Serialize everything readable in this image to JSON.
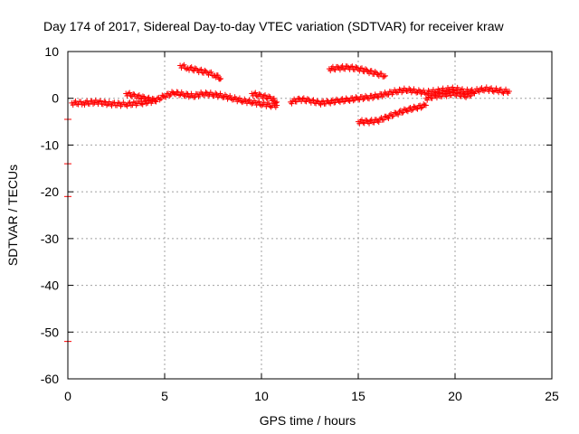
{
  "chart_data": {
    "type": "scatter",
    "title": "Day 174 of 2017, Sidereal Day-to-day VTEC variation (SDTVAR) for receiver kraw",
    "xlabel": "GPS time / hours",
    "ylabel": "SDTVAR / TECUs",
    "xlim": [
      0,
      25
    ],
    "ylim": [
      -60,
      10
    ],
    "xticks": [
      0,
      5,
      10,
      15,
      20,
      25
    ],
    "yticks": [
      10,
      0,
      -10,
      -20,
      -30,
      -40,
      -50,
      -60
    ],
    "grid": true,
    "marker": "plus",
    "color": "#ff0000",
    "series": [
      {
        "name": "main-trace-1",
        "x": [
          0.2,
          0.8,
          1.5,
          2.2,
          3.0,
          3.8,
          4.5,
          5.0,
          5.5,
          6.0,
          6.5,
          7.0,
          7.5,
          8.0,
          8.5,
          9.0,
          9.5,
          10.0,
          10.5,
          10.8
        ],
        "y": [
          -1.0,
          -1.0,
          -0.8,
          -1.2,
          -1.3,
          -1.0,
          -0.5,
          0.5,
          1.2,
          0.8,
          0.5,
          1.0,
          0.8,
          0.5,
          0.0,
          -0.5,
          -0.8,
          -1.2,
          -1.5,
          -1.5
        ]
      },
      {
        "name": "main-trace-2",
        "x": [
          3.0,
          3.5,
          4.0,
          4.5
        ],
        "y": [
          1.0,
          0.5,
          0.0,
          -0.5
        ]
      },
      {
        "name": "main-trace-3",
        "x": [
          9.5,
          10.0,
          10.5,
          10.8
        ],
        "y": [
          1.0,
          0.5,
          0.0,
          -0.8
        ]
      },
      {
        "name": "main-trace-4",
        "x": [
          11.5,
          12.0,
          12.5,
          13.0,
          13.5,
          14.0,
          14.5,
          15.0,
          15.5,
          16.0,
          16.5,
          17.0,
          17.5,
          18.0,
          18.5,
          19.0,
          19.5,
          20.0,
          20.5,
          21.0,
          21.5,
          22.0,
          22.5,
          22.8
        ],
        "y": [
          -0.8,
          -0.2,
          -0.5,
          -1.0,
          -0.8,
          -0.5,
          -0.3,
          0.0,
          0.2,
          0.5,
          1.0,
          1.5,
          1.8,
          1.5,
          1.2,
          1.5,
          1.8,
          2.0,
          1.5,
          1.5,
          2.0,
          1.8,
          1.5,
          1.5
        ]
      },
      {
        "name": "main-trace-5",
        "x": [
          18.5,
          19.0,
          19.5,
          20.0,
          20.5,
          21.0
        ],
        "y": [
          0.0,
          0.5,
          0.8,
          1.0,
          0.5,
          1.0
        ]
      },
      {
        "name": "upper-arc-1",
        "x": [
          5.8,
          6.2,
          6.7,
          7.2,
          7.6,
          7.9
        ],
        "y": [
          7.0,
          6.5,
          6.0,
          5.5,
          5.0,
          4.2
        ]
      },
      {
        "name": "upper-arc-2",
        "x": [
          13.5,
          14.0,
          14.5,
          15.0,
          15.5,
          16.0,
          16.4
        ],
        "y": [
          6.3,
          6.5,
          6.6,
          6.3,
          5.8,
          5.2,
          4.8
        ]
      },
      {
        "name": "lower-arc",
        "x": [
          15.0,
          15.5,
          16.0,
          16.5,
          17.0,
          17.5,
          18.0,
          18.5
        ],
        "y": [
          -5.0,
          -5.0,
          -4.8,
          -4.0,
          -3.2,
          -2.5,
          -2.0,
          -1.5
        ]
      },
      {
        "name": "outliers",
        "x": [
          0.0,
          0.0,
          0.0,
          0.0
        ],
        "y": [
          -4.5,
          -14.0,
          -21.0,
          -52.0
        ]
      }
    ]
  }
}
